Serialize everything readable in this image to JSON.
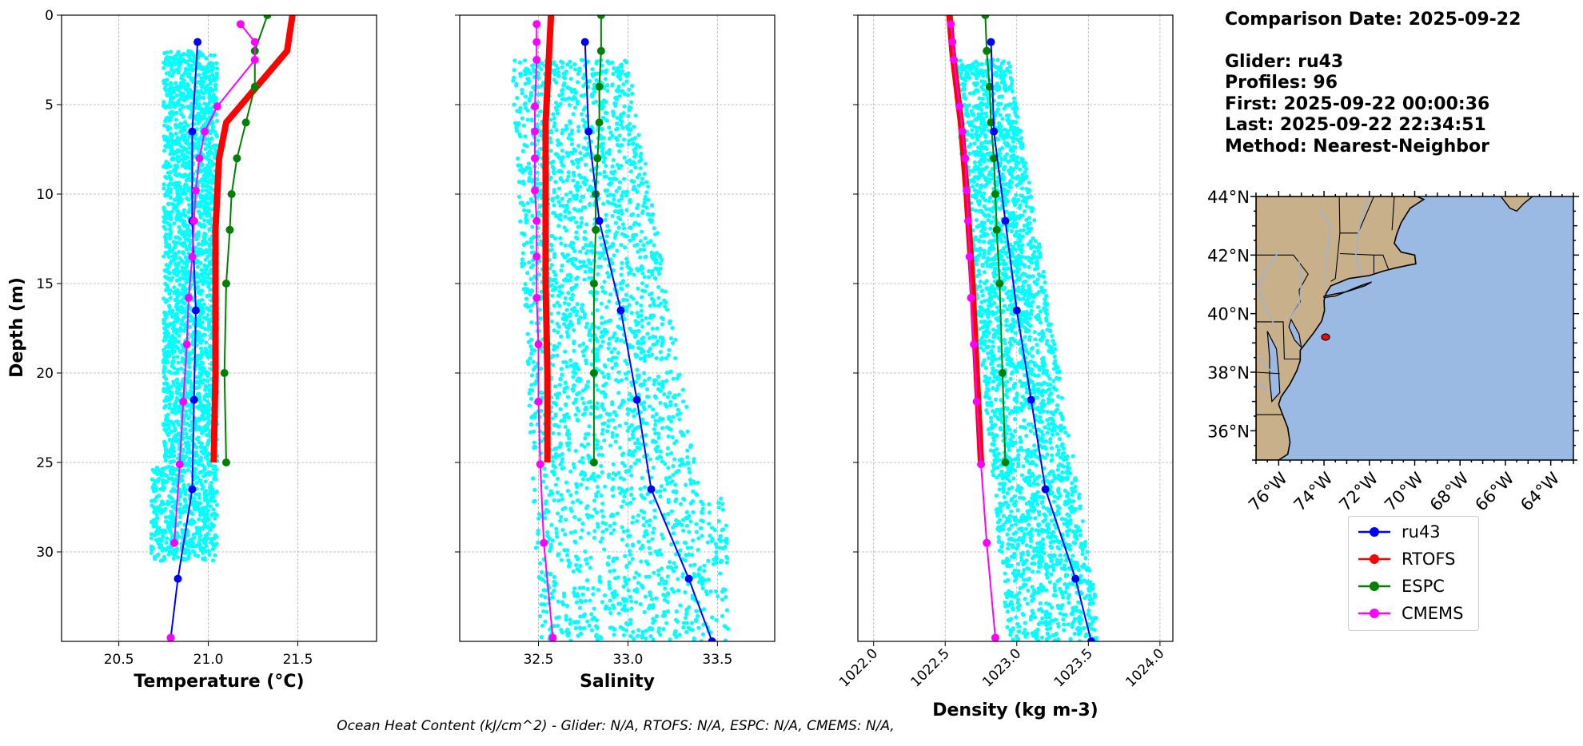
{
  "info": {
    "comparison_date": "Comparison Date: 2025-09-22",
    "glider": "Glider: ru43",
    "profiles": "Profiles: 96",
    "first": "First: 2025-09-22 00:00:36",
    "last": "Last: 2025-09-22 22:34:51",
    "method": "Method: Nearest-Neighbor"
  },
  "footer": "Ocean Heat Content (kJ/cm^2) - Glider: N/A,  RTOFS: N/A,  ESPC: N/A,  CMEMS: N/A,",
  "colors": {
    "ru43": "#0000ff",
    "rtofs": "#ff0000",
    "espc": "#008000",
    "cmems": "#ff00ff",
    "glider_cloud": "#00ffff",
    "land": "#c8b08a",
    "ocean": "#9ab9e3"
  },
  "legend": [
    {
      "label": "ru43",
      "color": "#0000ff"
    },
    {
      "label": "RTOFS",
      "color": "#ff0000"
    },
    {
      "label": "ESPC",
      "color": "#008000"
    },
    {
      "label": "CMEMS",
      "color": "#ff00ff"
    }
  ],
  "chart_data": [
    {
      "type": "line",
      "xlabel": "Temperature (°C)",
      "ylabel": "Depth (m)",
      "xlim": [
        20.18,
        21.94
      ],
      "ylim": [
        35,
        0
      ],
      "xticks": [
        "20.5",
        "21.0",
        "21.5"
      ],
      "xtick_values": [
        20.5,
        21.0,
        21.5
      ],
      "yticks": [
        "0",
        "5",
        "10",
        "15",
        "20",
        "25",
        "30"
      ],
      "ytick_values": [
        0,
        5,
        10,
        15,
        20,
        25,
        30
      ],
      "grid": true,
      "cloud": {
        "xmin": 20.75,
        "xmax": 21.05,
        "xmin_deep": 20.68,
        "dmin": 2,
        "dmax": 30.5
      },
      "series": [
        {
          "name": "ru43",
          "x": [
            20.94,
            20.91,
            20.91,
            20.93,
            20.92,
            20.91,
            20.83,
            20.79
          ],
          "y": [
            1.5,
            6.5,
            11.5,
            16.5,
            21.5,
            26.5,
            31.5,
            34.8
          ],
          "width": 2,
          "marker": 5
        },
        {
          "name": "RTOFS",
          "x": [
            21.47,
            21.44,
            21.1,
            21.06,
            21.04,
            21.04,
            21.03
          ],
          "y": [
            0,
            2,
            6,
            8,
            12,
            20,
            25
          ],
          "width": 8,
          "marker": 0
        },
        {
          "name": "ESPC",
          "x": [
            21.33,
            21.26,
            21.26,
            21.21,
            21.16,
            21.13,
            21.12,
            21.1,
            21.09,
            21.1
          ],
          "y": [
            0,
            2,
            4,
            6,
            8,
            10,
            12,
            15,
            20,
            25
          ],
          "width": 2,
          "marker": 5
        },
        {
          "name": "CMEMS",
          "x": [
            21.18,
            21.26,
            21.26,
            21.05,
            20.98,
            20.95,
            20.93,
            20.92,
            20.91,
            20.89,
            20.88,
            20.86,
            20.84,
            20.81
          ],
          "y": [
            0.5,
            1.5,
            2.5,
            5.1,
            6.5,
            8,
            9.8,
            11.5,
            13.5,
            15.8,
            18.4,
            21.6,
            25.1,
            29.5
          ],
          "width": 2,
          "marker": 5
        },
        {
          "name": "CMEMS-deep",
          "x": [
            20.79
          ],
          "y": [
            34.8
          ],
          "width": 2,
          "marker": 5
        }
      ]
    },
    {
      "type": "line",
      "xlabel": "Salinity",
      "ylabel": "",
      "xlim": [
        32.06,
        33.82
      ],
      "ylim": [
        35,
        0
      ],
      "xticks": [
        "32.5",
        "33.0",
        "33.5"
      ],
      "xtick_values": [
        32.5,
        33.0,
        33.5
      ],
      "yticks": [],
      "ytick_values": [
        0,
        5,
        10,
        15,
        20,
        25,
        30
      ],
      "grid": true,
      "cloud": {
        "xmin": 32.35,
        "xmax": 33.55,
        "dmin": 2.5,
        "dmax": 35
      },
      "series": [
        {
          "name": "ru43",
          "x": [
            32.76,
            32.78,
            32.84,
            32.96,
            33.05,
            33.13,
            33.34,
            33.47
          ],
          "y": [
            1.5,
            6.5,
            11.5,
            16.5,
            21.5,
            26.5,
            31.5,
            35
          ],
          "width": 2,
          "marker": 5
        },
        {
          "name": "RTOFS",
          "x": [
            32.57,
            32.56,
            32.54,
            32.54,
            32.54,
            32.55,
            32.55
          ],
          "y": [
            0,
            2,
            6,
            10,
            15,
            20,
            25
          ],
          "width": 8,
          "marker": 0
        },
        {
          "name": "ESPC",
          "x": [
            32.85,
            32.85,
            32.84,
            32.84,
            32.83,
            32.82,
            32.82,
            32.81,
            32.81,
            32.81
          ],
          "y": [
            0,
            2,
            4,
            6,
            8,
            10,
            12,
            15,
            20,
            25
          ],
          "width": 2,
          "marker": 5
        },
        {
          "name": "CMEMS",
          "x": [
            32.49,
            32.49,
            32.49,
            32.48,
            32.48,
            32.48,
            32.48,
            32.49,
            32.49,
            32.49,
            32.5,
            32.5,
            32.51,
            32.53,
            32.58
          ],
          "y": [
            0.5,
            1.5,
            2.5,
            5.1,
            6.5,
            8,
            9.8,
            11.5,
            13.5,
            15.8,
            18.4,
            21.6,
            25.1,
            29.5,
            34.8
          ],
          "width": 2,
          "marker": 5
        }
      ]
    },
    {
      "type": "line",
      "xlabel": "Density (kg m-3)",
      "ylabel": "",
      "xlim": [
        1021.89,
        1024.09
      ],
      "ylim": [
        35,
        0
      ],
      "xticks": [
        "1022.0",
        "1022.5",
        "1023.0",
        "1023.5",
        "1024.0"
      ],
      "xtick_values": [
        1022.0,
        1022.5,
        1023.0,
        1023.5,
        1024.0
      ],
      "yticks": [],
      "ytick_values": [
        0,
        5,
        10,
        15,
        20,
        25,
        30
      ],
      "grid": true,
      "cloud": {
        "xmin": 1022.55,
        "xmax": 1023.55,
        "dmin": 2.5,
        "dmax": 35
      },
      "series": [
        {
          "name": "ru43",
          "x": [
            1022.82,
            1022.84,
            1022.92,
            1023.0,
            1023.1,
            1023.2,
            1023.41,
            1023.52
          ],
          "y": [
            1.5,
            6.5,
            11.5,
            16.5,
            21.5,
            26.5,
            31.5,
            35
          ],
          "width": 2,
          "marker": 5
        },
        {
          "name": "RTOFS",
          "x": [
            1022.53,
            1022.55,
            1022.61,
            1022.65,
            1022.69,
            1022.72,
            1022.75
          ],
          "y": [
            0,
            2,
            6,
            10,
            15,
            20,
            25
          ],
          "width": 8,
          "marker": 0
        },
        {
          "name": "ESPC",
          "x": [
            1022.78,
            1022.79,
            1022.81,
            1022.82,
            1022.84,
            1022.85,
            1022.86,
            1022.88,
            1022.9,
            1022.92
          ],
          "y": [
            0,
            2,
            4,
            6,
            8,
            10,
            12,
            15,
            20,
            25
          ],
          "width": 2,
          "marker": 5
        },
        {
          "name": "CMEMS",
          "x": [
            1022.54,
            1022.55,
            1022.56,
            1022.6,
            1022.62,
            1022.64,
            1022.65,
            1022.66,
            1022.67,
            1022.68,
            1022.7,
            1022.72,
            1022.75,
            1022.79,
            1022.85
          ],
          "y": [
            0.5,
            1.5,
            2.5,
            5.1,
            6.5,
            8,
            9.8,
            11.5,
            13.5,
            15.8,
            18.4,
            21.6,
            25.1,
            29.5,
            34.8
          ],
          "width": 2,
          "marker": 5
        }
      ]
    }
  ],
  "map": {
    "type": "map",
    "lat_labels": [
      "44°N",
      "42°N",
      "40°N",
      "38°N",
      "36°N"
    ],
    "lat_values": [
      44,
      42,
      40,
      38,
      36
    ],
    "lon_labels": [
      "76°W",
      "74°W",
      "72°W",
      "70°W",
      "68°W",
      "66°W",
      "64°W"
    ],
    "lon_values": [
      -76,
      -74,
      -72,
      -70,
      -68,
      -66,
      -64
    ],
    "extent": {
      "lon_min": -77,
      "lon_max": -63,
      "lat_min": 35,
      "lat_max": 44
    },
    "glider_location": {
      "lon": -74.0,
      "lat": 39.2
    }
  }
}
